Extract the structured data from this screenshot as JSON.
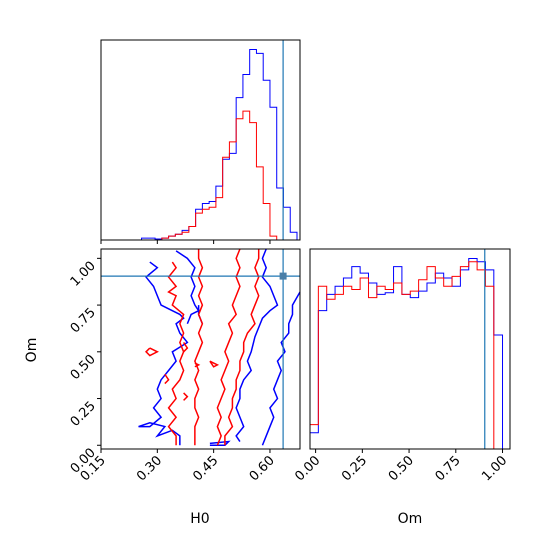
{
  "chart_data": [
    {
      "panel": "hist-H0",
      "type": "histogram",
      "xlim": [
        0.15,
        0.68
      ],
      "tick_values": [
        0.15,
        0.3,
        0.45,
        0.6
      ],
      "tick_labels": [],
      "truth": 0.635,
      "bins": [
        0.15,
        0.168,
        0.186,
        0.204,
        0.222,
        0.24,
        0.258,
        0.276,
        0.294,
        0.312,
        0.33,
        0.348,
        0.366,
        0.384,
        0.402,
        0.42,
        0.438,
        0.456,
        0.474,
        0.492,
        0.51,
        0.528,
        0.546,
        0.564,
        0.582,
        0.6,
        0.618,
        0.636,
        0.654,
        0.672
      ],
      "series": [
        {
          "color": "#0000ff",
          "counts": [
            0,
            0,
            0,
            0,
            0,
            0,
            0.01,
            0.01,
            0.005,
            0.01,
            0.02,
            0.03,
            0.05,
            0.07,
            0.16,
            0.19,
            0.2,
            0.28,
            0.42,
            0.45,
            0.74,
            0.86,
            0.99,
            0.97,
            0.83,
            0.69,
            0.27,
            0.17,
            0.04
          ]
        },
        {
          "color": "#ff0000",
          "counts": [
            0,
            0,
            0,
            0,
            0,
            0,
            0,
            0,
            0,
            0.01,
            0.02,
            0.03,
            0.04,
            0.07,
            0.14,
            0.16,
            0.17,
            0.22,
            0.43,
            0.51,
            0.63,
            0.67,
            0.61,
            0.38,
            0.19,
            0.02,
            0,
            0,
            0
          ]
        }
      ]
    },
    {
      "panel": "contour-H0-Om",
      "type": "contour",
      "xlim": [
        0.15,
        0.68
      ],
      "ylim": [
        -0.02,
        1.05
      ],
      "xlabel": "H0",
      "ylabel": "Om",
      "x_ticks": [
        "0.15",
        "0.30",
        "0.45",
        "0.60"
      ],
      "x_tick_values": [
        0.15,
        0.3,
        0.45,
        0.6
      ],
      "y_ticks": [
        "0.00",
        "0.25",
        "0.50",
        "0.75",
        "1.00"
      ],
      "y_tick_values": [
        0.0,
        0.25,
        0.5,
        0.75,
        1.0
      ],
      "truth": {
        "x": 0.635,
        "y": 0.905
      },
      "series": [
        {
          "color": "#0000ff",
          "lines": [
            [
              [
                0.28,
                0.98
              ],
              [
                0.3,
                0.95
              ],
              [
                0.27,
                0.9
              ],
              [
                0.29,
                0.85
              ],
              [
                0.3,
                0.8
              ],
              [
                0.31,
                0.75
              ],
              [
                0.34,
                0.72
              ],
              [
                0.36,
                0.7
              ],
              [
                0.37,
                0.68
              ],
              [
                0.35,
                0.65
              ],
              [
                0.36,
                0.6
              ],
              [
                0.38,
                0.55
              ],
              [
                0.34,
                0.5
              ],
              [
                0.35,
                0.45
              ],
              [
                0.33,
                0.4
              ],
              [
                0.31,
                0.35
              ],
              [
                0.3,
                0.3
              ],
              [
                0.31,
                0.25
              ],
              [
                0.29,
                0.2
              ],
              [
                0.31,
                0.15
              ],
              [
                0.28,
                0.1
              ],
              [
                0.25,
                0.1
              ],
              [
                0.28,
                0.12
              ],
              [
                0.32,
                0.1
              ],
              [
                0.3,
                0.05
              ],
              [
                0.34,
                0.08
              ],
              [
                0.36,
                0.05
              ],
              [
                0.36,
                0.0
              ]
            ],
            [
              [
                0.35,
                1.04
              ],
              [
                0.38,
                1.0
              ],
              [
                0.4,
                0.95
              ],
              [
                0.39,
                0.9
              ],
              [
                0.4,
                0.85
              ],
              [
                0.39,
                0.8
              ],
              [
                0.4,
                0.75
              ],
              [
                0.41,
                0.72
              ],
              [
                0.39,
                0.7
              ],
              [
                0.38,
                0.65
              ]
            ],
            [
              [
                0.41,
                0.75
              ],
              [
                0.41,
                0.7
              ],
              [
                0.42,
                0.65
              ]
            ],
            [
              [
                0.44,
                0.0
              ],
              [
                0.48,
                0.0
              ],
              [
                0.49,
                0.02
              ],
              [
                0.44,
                0.01
              ]
            ],
            [
              [
                0.59,
                1.05
              ],
              [
                0.58,
                1.0
              ],
              [
                0.59,
                0.95
              ],
              [
                0.58,
                0.9
              ],
              [
                0.6,
                0.85
              ],
              [
                0.61,
                0.8
              ],
              [
                0.62,
                0.75
              ],
              [
                0.6,
                0.72
              ],
              [
                0.58,
                0.68
              ],
              [
                0.57,
                0.63
              ],
              [
                0.56,
                0.58
              ],
              [
                0.55,
                0.5
              ],
              [
                0.54,
                0.45
              ],
              [
                0.55,
                0.4
              ],
              [
                0.53,
                0.35
              ],
              [
                0.52,
                0.3
              ],
              [
                0.52,
                0.25
              ],
              [
                0.51,
                0.2
              ],
              [
                0.52,
                0.15
              ],
              [
                0.53,
                0.1
              ],
              [
                0.51,
                0.05
              ],
              [
                0.52,
                0.02
              ]
            ],
            [
              [
                0.58,
                0.0
              ],
              [
                0.59,
                0.05
              ],
              [
                0.6,
                0.1
              ],
              [
                0.61,
                0.15
              ],
              [
                0.6,
                0.2
              ],
              [
                0.62,
                0.25
              ],
              [
                0.61,
                0.3
              ],
              [
                0.62,
                0.35
              ],
              [
                0.63,
                0.4
              ],
              [
                0.62,
                0.45
              ],
              [
                0.64,
                0.5
              ],
              [
                0.63,
                0.55
              ],
              [
                0.65,
                0.6
              ],
              [
                0.65,
                0.65
              ],
              [
                0.66,
                0.7
              ],
              [
                0.66,
                0.75
              ],
              [
                0.68,
                0.82
              ]
            ]
          ]
        },
        {
          "color": "#ff0000",
          "lines": [
            [
              [
                0.34,
                0.98
              ],
              [
                0.35,
                0.95
              ],
              [
                0.33,
                0.9
              ],
              [
                0.35,
                0.85
              ],
              [
                0.33,
                0.82
              ],
              [
                0.35,
                0.8
              ],
              [
                0.34,
                0.75
              ],
              [
                0.37,
                0.7
              ],
              [
                0.36,
                0.65
              ],
              [
                0.37,
                0.6
              ],
              [
                0.36,
                0.55
              ],
              [
                0.37,
                0.5
              ],
              [
                0.36,
                0.45
              ],
              [
                0.37,
                0.4
              ],
              [
                0.36,
                0.35
              ],
              [
                0.34,
                0.3
              ],
              [
                0.35,
                0.25
              ],
              [
                0.33,
                0.2
              ],
              [
                0.35,
                0.15
              ],
              [
                0.33,
                0.1
              ],
              [
                0.35,
                0.05
              ],
              [
                0.35,
                0.0
              ]
            ],
            [
              [
                0.41,
                1.05
              ],
              [
                0.41,
                1.0
              ],
              [
                0.42,
                0.95
              ],
              [
                0.41,
                0.9
              ],
              [
                0.42,
                0.85
              ],
              [
                0.41,
                0.8
              ],
              [
                0.42,
                0.75
              ],
              [
                0.41,
                0.7
              ],
              [
                0.42,
                0.65
              ],
              [
                0.41,
                0.6
              ],
              [
                0.42,
                0.55
              ],
              [
                0.41,
                0.5
              ],
              [
                0.4,
                0.45
              ],
              [
                0.41,
                0.4
              ],
              [
                0.4,
                0.35
              ],
              [
                0.41,
                0.3
              ],
              [
                0.4,
                0.25
              ],
              [
                0.4,
                0.2
              ],
              [
                0.41,
                0.15
              ],
              [
                0.4,
                0.1
              ],
              [
                0.4,
                0.05
              ],
              [
                0.4,
                0.0
              ]
            ],
            [
              [
                0.52,
                1.05
              ],
              [
                0.51,
                1.0
              ],
              [
                0.52,
                0.95
              ],
              [
                0.51,
                0.9
              ],
              [
                0.52,
                0.85
              ],
              [
                0.51,
                0.8
              ],
              [
                0.5,
                0.75
              ],
              [
                0.51,
                0.7
              ],
              [
                0.49,
                0.65
              ],
              [
                0.5,
                0.6
              ],
              [
                0.49,
                0.55
              ],
              [
                0.48,
                0.5
              ],
              [
                0.49,
                0.45
              ],
              [
                0.48,
                0.4
              ],
              [
                0.47,
                0.35
              ],
              [
                0.48,
                0.3
              ],
              [
                0.47,
                0.25
              ],
              [
                0.46,
                0.2
              ],
              [
                0.47,
                0.15
              ],
              [
                0.46,
                0.1
              ],
              [
                0.47,
                0.05
              ],
              [
                0.46,
                0.0
              ]
            ],
            [
              [
                0.57,
                1.05
              ],
              [
                0.57,
                1.0
              ],
              [
                0.56,
                0.95
              ],
              [
                0.57,
                0.9
              ],
              [
                0.56,
                0.85
              ],
              [
                0.57,
                0.8
              ],
              [
                0.56,
                0.75
              ],
              [
                0.55,
                0.7
              ],
              [
                0.56,
                0.65
              ],
              [
                0.54,
                0.6
              ],
              [
                0.53,
                0.55
              ],
              [
                0.53,
                0.5
              ],
              [
                0.52,
                0.45
              ],
              [
                0.52,
                0.4
              ],
              [
                0.51,
                0.35
              ],
              [
                0.51,
                0.3
              ],
              [
                0.5,
                0.25
              ],
              [
                0.5,
                0.2
              ],
              [
                0.49,
                0.15
              ],
              [
                0.5,
                0.1
              ],
              [
                0.48,
                0.05
              ],
              [
                0.48,
                0.0
              ]
            ],
            [
              [
                0.44,
                0.45
              ],
              [
                0.45,
                0.44
              ],
              [
                0.46,
                0.43
              ],
              [
                0.45,
                0.42
              ],
              [
                0.44,
                0.45
              ]
            ],
            [
              [
                0.4,
                0.44
              ],
              [
                0.41,
                0.43
              ],
              [
                0.4,
                0.42
              ]
            ],
            [
              [
                0.37,
                0.28
              ],
              [
                0.38,
                0.26
              ],
              [
                0.37,
                0.24
              ]
            ],
            [
              [
                0.37,
                0.55
              ],
              [
                0.38,
                0.52
              ],
              [
                0.37,
                0.5
              ]
            ],
            [
              [
                0.32,
                0.38
              ],
              [
                0.33,
                0.35
              ],
              [
                0.32,
                0.33
              ]
            ],
            [
              [
                0.28,
                0.52
              ],
              [
                0.3,
                0.5
              ],
              [
                0.28,
                0.48
              ],
              [
                0.27,
                0.5
              ],
              [
                0.28,
                0.52
              ]
            ]
          ]
        }
      ]
    },
    {
      "panel": "hist-Om",
      "type": "histogram",
      "xlim": [
        -0.03,
        1.04
      ],
      "xlabel": "Om",
      "tick_labels": [
        "0.00",
        "0.25",
        "0.50",
        "0.75",
        "1.00"
      ],
      "tick_values": [
        0.0,
        0.25,
        0.5,
        0.75,
        1.0
      ],
      "truth": 0.905,
      "bins": [
        -0.03,
        0.0147,
        0.0594,
        0.1041,
        0.1488,
        0.1935,
        0.2382,
        0.2829,
        0.3276,
        0.3723,
        0.417,
        0.4617,
        0.5064,
        0.5511,
        0.5958,
        0.6405,
        0.6852,
        0.7299,
        0.7746,
        0.8193,
        0.864,
        0.9087,
        0.9534,
        1.0
      ],
      "series": [
        {
          "color": "#0000ff",
          "counts": [
            0.1,
            0.85,
            0.95,
            1.0,
            1.05,
            1.12,
            1.08,
            1.02,
            0.95,
            0.96,
            1.12,
            0.95,
            0.93,
            0.97,
            1.02,
            1.08,
            1.05,
            1.0,
            1.1,
            1.17,
            1.15,
            1.1,
            0.7
          ]
        },
        {
          "color": "#ff0000",
          "counts": [
            0.15,
            1.0,
            0.92,
            0.95,
            1.0,
            0.98,
            1.05,
            0.93,
            1.0,
            0.98,
            1.02,
            0.95,
            0.97,
            1.04,
            1.12,
            1.05,
            1.0,
            1.06,
            1.12,
            1.15,
            1.1,
            1.0,
            0.0
          ]
        }
      ]
    }
  ]
}
